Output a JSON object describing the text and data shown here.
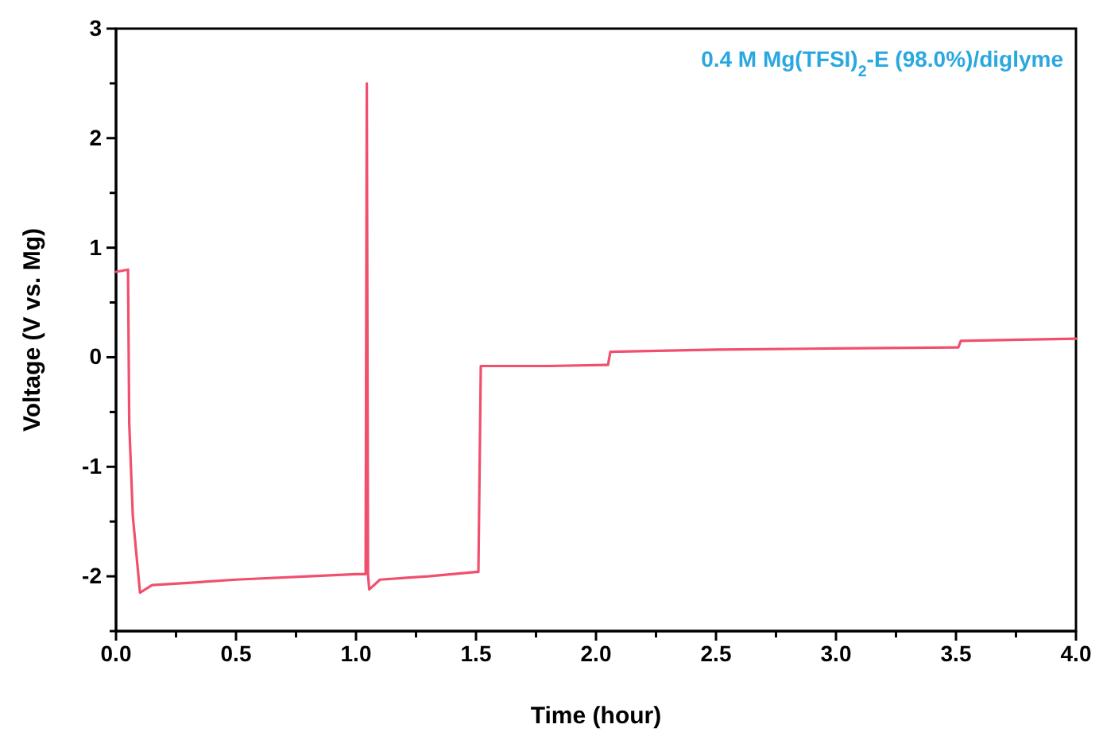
{
  "chart_data": {
    "type": "line",
    "xlabel": "Time (hour)",
    "ylabel": "Voltage (V vs. Mg)",
    "annotations": [
      "0.4 M Mg(TFSI)$_{2}$-E (98.0%)/diglyme"
    ],
    "xlim": [
      0,
      4
    ],
    "ylim": [
      -2.5,
      3
    ],
    "xticks": [
      {
        "value": 0,
        "label": "0.0"
      },
      {
        "value": 0.25,
        "label": null
      },
      {
        "value": 0.5,
        "label": "0.5"
      },
      {
        "value": 0.75,
        "label": null
      },
      {
        "value": 1,
        "label": "1.0"
      },
      {
        "value": 1.25,
        "label": null
      },
      {
        "value": 1.5,
        "label": "1.5"
      },
      {
        "value": 1.75,
        "label": null
      },
      {
        "value": 2,
        "label": "2.0"
      },
      {
        "value": 2.25,
        "label": null
      },
      {
        "value": 2.5,
        "label": "2.5"
      },
      {
        "value": 2.75,
        "label": null
      },
      {
        "value": 3,
        "label": "3.0"
      },
      {
        "value": 3.25,
        "label": null
      },
      {
        "value": 3.5,
        "label": "3.5"
      },
      {
        "value": 3.75,
        "label": null
      },
      {
        "value": 4,
        "label": "4.0"
      }
    ],
    "yticks": [
      {
        "value": -2.5,
        "label": null
      },
      -2,
      {
        "value": -1.5,
        "label": null
      },
      -1,
      {
        "value": -0.5,
        "label": null
      },
      0,
      {
        "value": 0.5,
        "label": null
      },
      1,
      {
        "value": 1.5,
        "label": null
      },
      2,
      {
        "value": 2.5,
        "label": null
      },
      3
    ],
    "marker": "none",
    "line_style": "solid",
    "series": [
      {
        "color": "#f0506e",
        "x": [
          0,
          0.05,
          0.055,
          0.07,
          0.1,
          0.15,
          0.3,
          0.5,
          0.8,
          1.0,
          1.04,
          1.045,
          1.05,
          1.055,
          1.1,
          1.3,
          1.5,
          1.51,
          1.52,
          1.8,
          2.04,
          2.05,
          2.06,
          2.5,
          3.0,
          3.5,
          3.51,
          3.52,
          4.0
        ],
        "values": [
          0.78,
          0.8,
          -0.6,
          -1.45,
          -2.15,
          -2.08,
          -2.06,
          -2.03,
          -2.0,
          -1.98,
          -1.98,
          2.5,
          -1.98,
          -2.12,
          -2.03,
          -2.0,
          -1.96,
          -1.96,
          -0.08,
          -0.08,
          -0.07,
          -0.07,
          0.05,
          0.07,
          0.08,
          0.09,
          0.09,
          0.15,
          0.17
        ]
      }
    ]
  }
}
